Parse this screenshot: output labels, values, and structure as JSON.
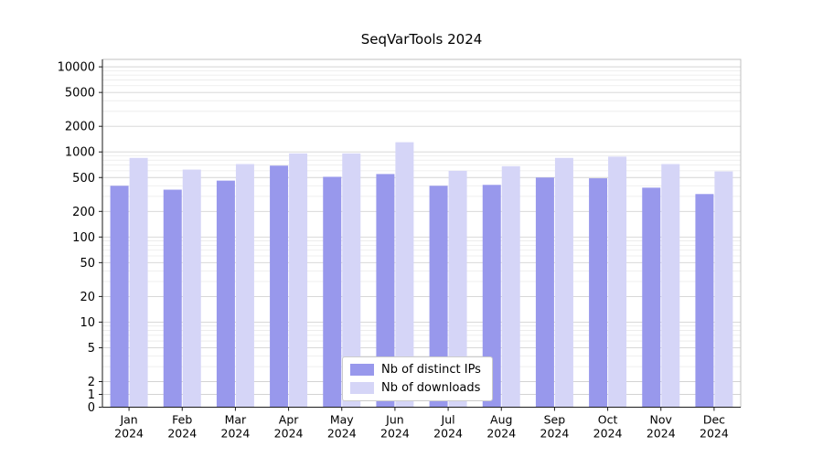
{
  "title": "SeqVarTools 2024",
  "chart_data": {
    "type": "bar",
    "title": "SeqVarTools 2024",
    "scale": "symlog",
    "xlabel": "",
    "ylabel": "",
    "categories": [
      "Jan",
      "Feb",
      "Mar",
      "Apr",
      "May",
      "Jun",
      "Jul",
      "Aug",
      "Sep",
      "Oct",
      "Nov",
      "Dec"
    ],
    "x_tick_year": "2024",
    "series": [
      {
        "name": "Nb of distinct IPs",
        "color": "#9898ec",
        "values": [
          400,
          360,
          460,
          690,
          510,
          550,
          400,
          410,
          500,
          490,
          380,
          320
        ]
      },
      {
        "name": "Nb of downloads",
        "color": "#d5d5f7",
        "values": [
          850,
          620,
          720,
          960,
          960,
          1300,
          600,
          680,
          850,
          880,
          720,
          590
        ]
      }
    ],
    "y_ticks": [
      0,
      1,
      2,
      5,
      10,
      20,
      50,
      100,
      200,
      500,
      1000,
      2000,
      5000,
      10000
    ],
    "ylim": [
      0,
      12500
    ],
    "grid": true,
    "legend_position": "bottom-center",
    "colors": {
      "grid_major": "#d3d3d3",
      "grid_minor": "#eaeaea",
      "spine_light": "#c0c0c0",
      "axis": "#1a1a1a",
      "text": "#000000",
      "background": "#ffffff"
    }
  }
}
